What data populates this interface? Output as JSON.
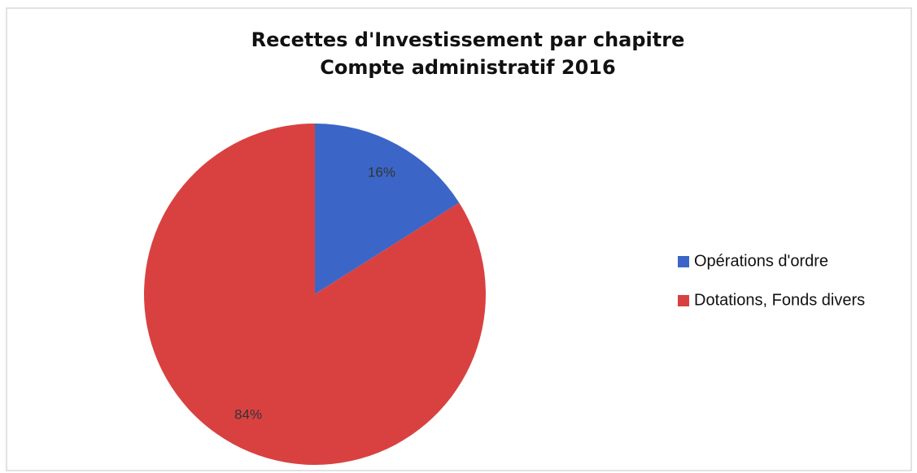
{
  "chart_data": {
    "type": "pie",
    "title": [
      "Recettes d'Investissement par chapitre",
      "Compte administratif 2016"
    ],
    "categories": [
      "Opérations d'ordre",
      "Dotations, Fonds divers"
    ],
    "values": [
      16,
      84
    ],
    "value_labels": [
      "16%",
      "84%"
    ],
    "colors": [
      "#3b66c8",
      "#d94141"
    ],
    "legend": "right"
  }
}
